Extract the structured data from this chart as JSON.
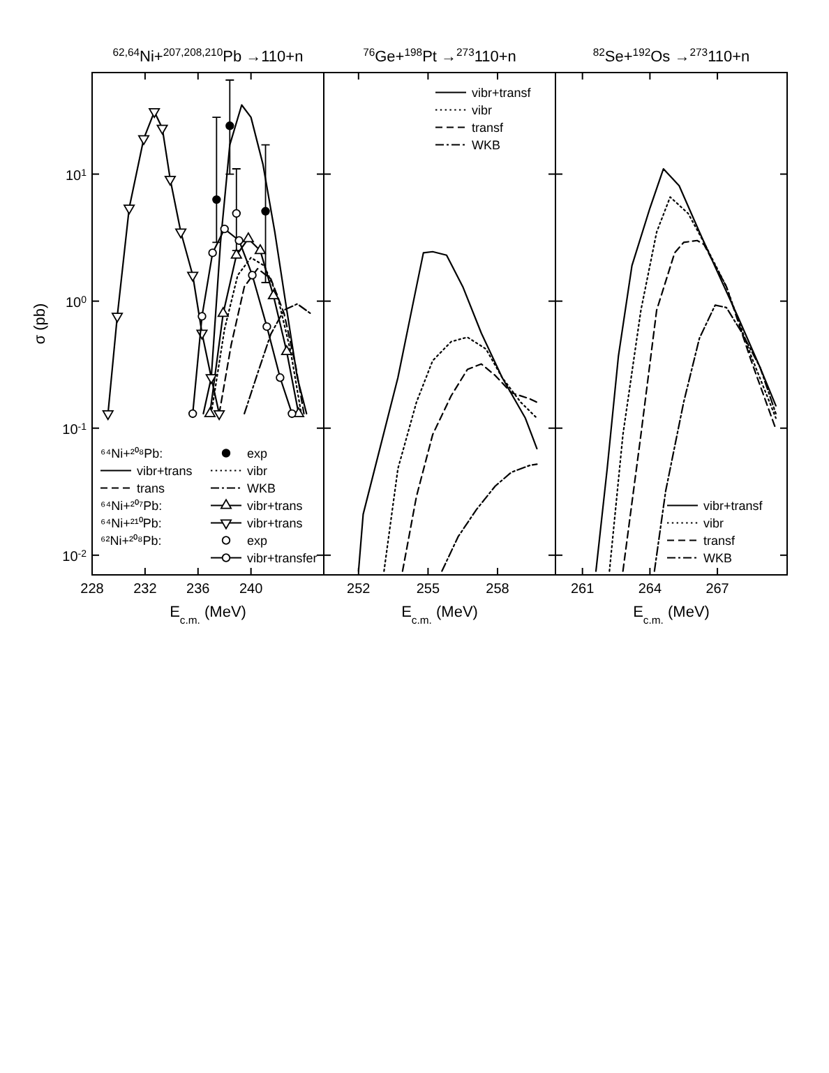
{
  "chart_data": [
    {
      "type": "line",
      "title": "$^{62,64}$Ni+$^{207,208,210}$Pb →110+n",
      "xlabel": "E$_{c.m.}$ (MeV)",
      "ylabel": "σ (pb)",
      "xlim": [
        228,
        245.5
      ],
      "xticks": [
        228,
        232,
        236,
        240
      ],
      "ylim": [
        0.007,
        63
      ],
      "yticks": [
        {
          "value": 0.01,
          "label": "10$^{-2}$"
        },
        {
          "value": 0.1,
          "label": "10$^{-1}$"
        },
        {
          "value": 1,
          "label": "10$^{0}$"
        },
        {
          "value": 10,
          "label": "10$^{1}$"
        }
      ],
      "log": "y",
      "legend": "bottom",
      "marker": "none",
      "grid": false,
      "annotations": [
        "⁶⁴Ni+²⁰⁸Pb:",
        "⁶⁴Ni+²⁰⁷Pb:",
        "⁶⁴Ni+²¹⁰Pb:",
        "⁶²Ni+²⁰⁸Pb:"
      ],
      "series": [
        {
          "name": "exp",
          "type": "scatter",
          "marker": "circle",
          "color": "#000000",
          "x": [
            237.4,
            238.4,
            241.1
          ],
          "values": [
            6.3,
            24,
            5.1
          ],
          "errors": [
            [
              2.9,
              28
            ],
            [
              10,
              55
            ],
            [
              1.4,
              17
            ]
          ]
        },
        {
          "name": "vibr+trans",
          "color": "#000000",
          "line_style": "solid",
          "x": [
            236.4,
            237.0,
            237.7,
            238.4,
            239.3,
            240.0,
            240.9,
            241.8,
            242.6,
            243.5,
            244.2
          ],
          "values": [
            0.13,
            0.25,
            2.9,
            17,
            35,
            28,
            12,
            3.5,
            1.0,
            0.25,
            0.13
          ]
        },
        {
          "name": "vibr",
          "color": "#000000",
          "line_style": "dotted",
          "x": [
            237.0,
            238.0,
            239.0,
            240.0,
            241.0,
            242.0,
            243.0,
            243.8
          ],
          "values": [
            0.13,
            0.6,
            1.6,
            2.2,
            1.9,
            1.1,
            0.4,
            0.13
          ]
        },
        {
          "name": "trans",
          "color": "#000000",
          "line_style": "dashed",
          "x": [
            237.6,
            238.5,
            239.5,
            240.5,
            241.5,
            242.5,
            243.4,
            244.0
          ],
          "values": [
            0.13,
            0.45,
            1.3,
            1.8,
            1.5,
            0.8,
            0.3,
            0.13
          ]
        },
        {
          "name": "WKB",
          "color": "#000000",
          "line_style": "dashdot",
          "x": [
            239.5,
            240.5,
            241.5,
            242.5,
            243.5,
            244.5
          ],
          "values": [
            0.13,
            0.27,
            0.55,
            0.85,
            0.95,
            0.8
          ]
        },
        {
          "name": "vibr+trans",
          "color": "#000000",
          "line_style": "solid",
          "marker": "triangle",
          "x": [
            236.9,
            237.9,
            238.9,
            239.8,
            240.7,
            241.7,
            242.7,
            243.6
          ],
          "values": [
            0.13,
            0.8,
            2.3,
            3.1,
            2.5,
            1.1,
            0.4,
            0.13
          ]
        },
        {
          "name": "vibr+trans",
          "color": "#000000",
          "line_style": "solid",
          "marker": "triangle-down",
          "x": [
            229.2,
            229.9,
            230.8,
            231.9,
            232.7,
            233.3,
            233.9,
            234.7,
            235.6,
            236.3,
            237.0,
            237.6
          ],
          "values": [
            0.13,
            0.76,
            5.4,
            19,
            31,
            23,
            9.1,
            3.5,
            1.6,
            0.56,
            0.25,
            0.13
          ]
        },
        {
          "name": "exp",
          "color": "#000000",
          "line_style": "none",
          "marker": "circle",
          "x": [
            238.9
          ],
          "values": [
            4.9
          ],
          "errors": [
            [
              2.5,
              11
            ]
          ]
        },
        {
          "name": "vibr+transfer",
          "color": "#000000",
          "line_style": "solid",
          "marker": "circle",
          "x": [
            235.6,
            236.3,
            237.1,
            238.0,
            239.1,
            240.1,
            241.2,
            242.2,
            243.1
          ],
          "values": [
            0.13,
            0.76,
            2.4,
            3.7,
            3.0,
            1.6,
            0.63,
            0.25,
            0.13
          ]
        }
      ]
    },
    {
      "type": "line",
      "title": "$^{76}$Ge+$^{198}$Pt →$^{273}$110+n",
      "xlabel": "E$_{c.m.}$ (MeV)",
      "xlim": [
        250.5,
        260.5
      ],
      "xticks": [
        252,
        255,
        258
      ],
      "ylim": [
        0.007,
        63
      ],
      "yticks": [
        {
          "value": 0.01,
          "label": null
        },
        {
          "value": 0.1,
          "label": null
        },
        {
          "value": 1,
          "label": null
        },
        {
          "value": 10,
          "label": null
        }
      ],
      "log": "y",
      "tick_labels": "x",
      "legend": "top right",
      "marker": "none",
      "grid": false,
      "series": [
        {
          "name": "vibr+transf",
          "color": "#000000",
          "line_style": "solid",
          "x": [
            252.0,
            252.2,
            253.7,
            254.5,
            254.8,
            255.2,
            255.8,
            256.5,
            257.3,
            258.2,
            259.2,
            259.7
          ],
          "values": [
            0.0075,
            0.021,
            0.25,
            1.3,
            2.4,
            2.45,
            2.3,
            1.3,
            0.56,
            0.25,
            0.12,
            0.069
          ]
        },
        {
          "name": "vibr",
          "color": "#000000",
          "line_style": "dotted",
          "x": [
            253.1,
            253.7,
            254.5,
            255.2,
            256.0,
            256.7,
            257.5,
            258.2,
            259.0,
            259.7
          ],
          "values": [
            0.0075,
            0.048,
            0.16,
            0.34,
            0.48,
            0.52,
            0.42,
            0.25,
            0.16,
            0.12
          ]
        },
        {
          "name": "transf",
          "color": "#000000",
          "line_style": "dashed",
          "x": [
            253.9,
            254.5,
            255.2,
            256.0,
            256.7,
            257.3,
            257.9,
            258.6,
            259.4,
            259.7
          ],
          "values": [
            0.0075,
            0.029,
            0.089,
            0.18,
            0.29,
            0.32,
            0.26,
            0.19,
            0.17,
            0.16
          ]
        },
        {
          "name": "WKB",
          "color": "#000000",
          "line_style": "dashdot",
          "x": [
            255.6,
            256.3,
            257.1,
            257.9,
            258.6,
            259.4,
            259.7
          ],
          "values": [
            0.0075,
            0.014,
            0.023,
            0.035,
            0.045,
            0.051,
            0.052
          ]
        }
      ]
    },
    {
      "type": "line",
      "title": "$^{82}$Se+$^{192}$Os →$^{273}$110+n",
      "xlabel": "E$_{c.m.}$ (MeV)",
      "xlim": [
        259.8,
        270.1
      ],
      "xticks": [
        261,
        264,
        267
      ],
      "ylim": [
        0.007,
        63
      ],
      "yticks": [
        {
          "value": 0.01,
          "label": null
        },
        {
          "value": 0.1,
          "label": null
        },
        {
          "value": 1,
          "label": null
        },
        {
          "value": 10,
          "label": null
        }
      ],
      "log": "y",
      "tick_labels": "x",
      "legend": "bottom right",
      "marker": "none",
      "grid": false,
      "series": [
        {
          "name": "vibr+transf",
          "color": "#000000",
          "line_style": "solid",
          "x": [
            261.6,
            262.1,
            262.6,
            263.2,
            264.0,
            264.6,
            265.3,
            266.2,
            267.0,
            267.9,
            268.9,
            269.6
          ],
          "values": [
            0.0075,
            0.048,
            0.37,
            1.9,
            5.4,
            11,
            8.1,
            3.5,
            1.7,
            0.76,
            0.3,
            0.15
          ]
        },
        {
          "name": "vibr",
          "color": "#000000",
          "line_style": "dotted",
          "x": [
            262.2,
            262.8,
            263.6,
            264.3,
            264.9,
            265.7,
            266.4,
            267.4,
            268.5,
            269.6
          ],
          "values": [
            0.0075,
            0.089,
            0.85,
            3.5,
            6.6,
            4.9,
            2.9,
            1.3,
            0.37,
            0.12
          ]
        },
        {
          "name": "transf",
          "color": "#000000",
          "line_style": "dashed",
          "x": [
            262.8,
            263.6,
            264.3,
            265.1,
            265.5,
            266.1,
            266.4,
            267.4,
            268.5,
            269.6
          ],
          "values": [
            0.0075,
            0.089,
            0.85,
            2.4,
            2.9,
            3.0,
            2.8,
            1.3,
            0.34,
            0.098
          ]
        },
        {
          "name": "WKB",
          "color": "#000000",
          "line_style": "dashdot",
          "x": [
            264.2,
            264.7,
            265.5,
            266.2,
            266.9,
            267.4,
            268.1,
            268.9,
            269.6
          ],
          "values": [
            0.0075,
            0.032,
            0.16,
            0.51,
            0.93,
            0.89,
            0.56,
            0.3,
            0.13
          ]
        }
      ]
    }
  ]
}
